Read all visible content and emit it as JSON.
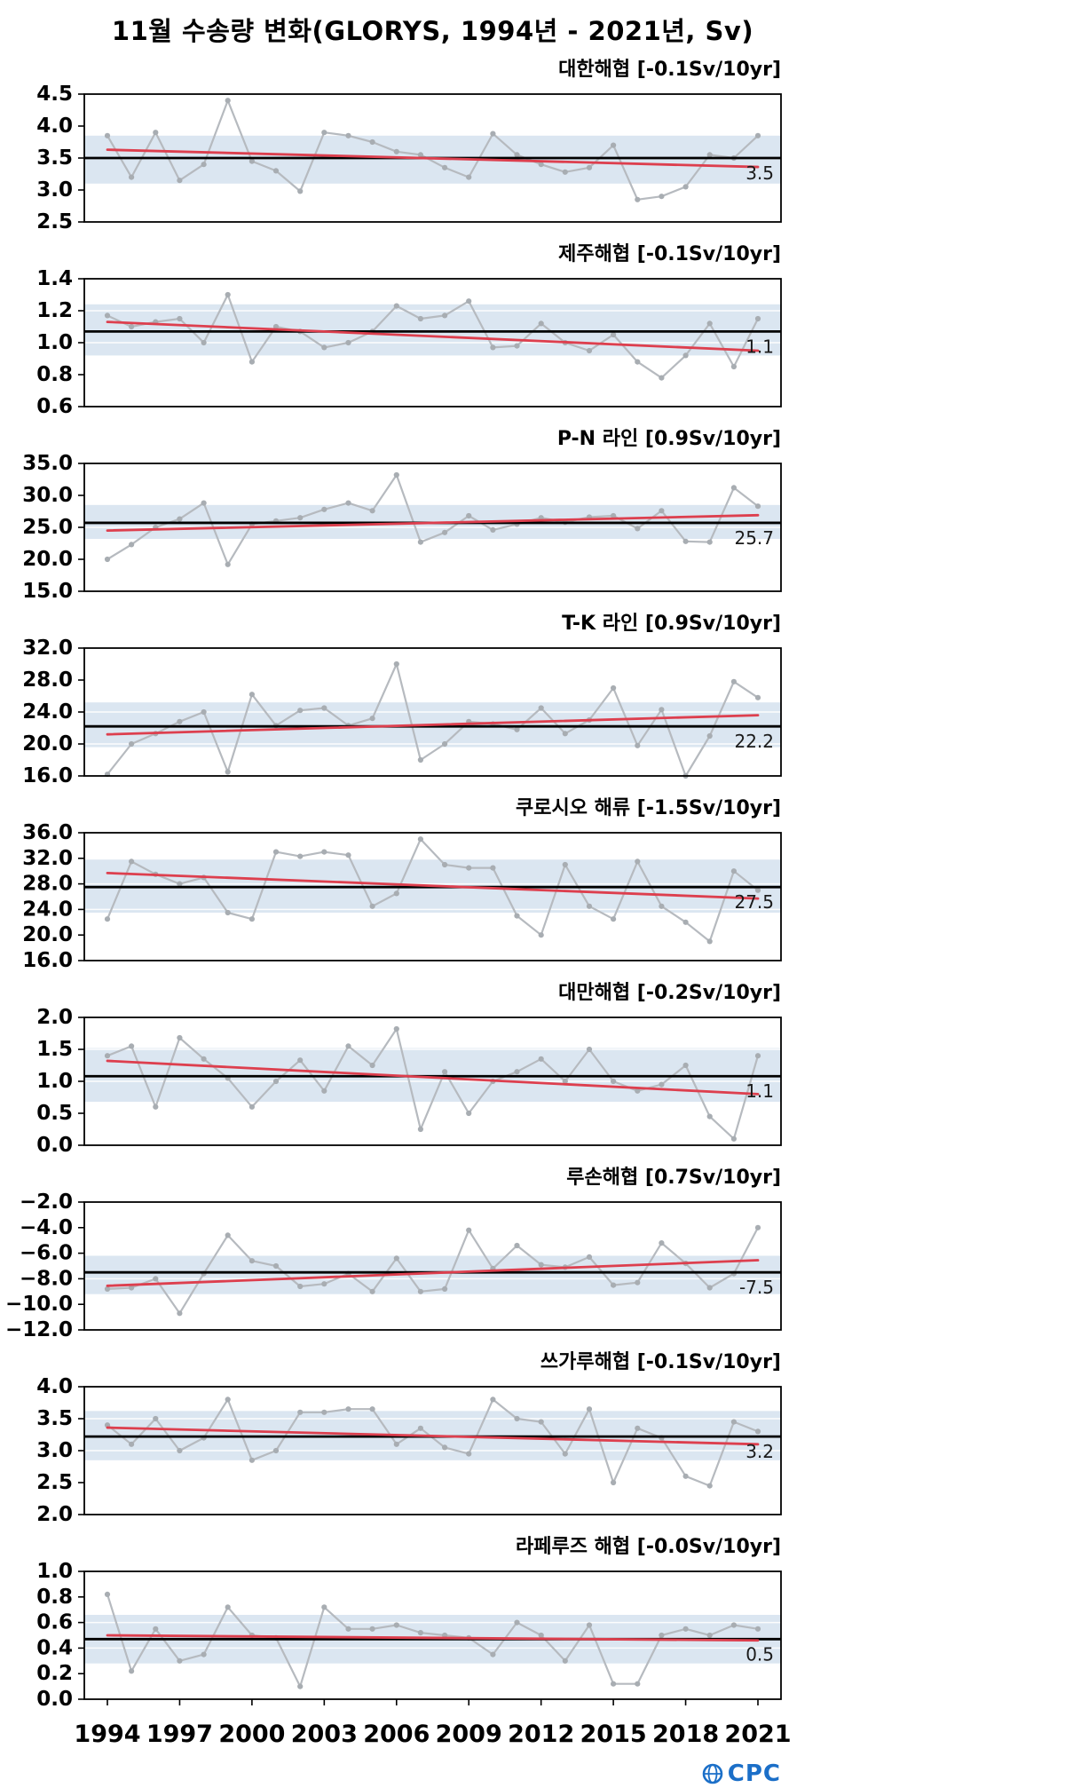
{
  "page_title": "11월 수송량 변화(GLORYS, 1994년 - 2021년, Sv)",
  "footer": {
    "logo_text": "CPC",
    "logo_color": "#1b6fc8"
  },
  "colors": {
    "series": "#b6babf",
    "marker": "#a8adb2",
    "trend": "#dd3f4e",
    "mean": "#000000",
    "band": "#dbe6f1",
    "gridline": "#ffffff",
    "border": "#000000"
  },
  "years": [
    1994,
    1995,
    1996,
    1997,
    1998,
    1999,
    2000,
    2001,
    2002,
    2003,
    2004,
    2005,
    2006,
    2007,
    2008,
    2009,
    2010,
    2011,
    2012,
    2013,
    2014,
    2015,
    2016,
    2017,
    2018,
    2019,
    2020,
    2021
  ],
  "x_axis": {
    "ticks": [
      1994,
      1997,
      2000,
      2003,
      2006,
      2009,
      2012,
      2015,
      2018,
      2021
    ]
  },
  "chart_data": [
    {
      "type": "line",
      "title": "대한해협 [-0.1Sv/10yr]",
      "trend_rate": "-0.1Sv/10yr",
      "values": [
        3.85,
        3.2,
        3.9,
        3.15,
        3.4,
        4.4,
        3.45,
        3.3,
        2.98,
        3.9,
        3.85,
        3.75,
        3.6,
        3.55,
        3.35,
        3.2,
        3.88,
        3.55,
        3.4,
        3.28,
        3.35,
        3.7,
        2.85,
        2.9,
        3.05,
        3.55,
        3.5,
        3.85
      ],
      "ylim": [
        2.5,
        4.5
      ],
      "yticks": [
        2.5,
        3.0,
        3.5,
        4.0,
        4.5
      ],
      "mean": 3.5,
      "mean_label": "3.5",
      "band": [
        3.1,
        3.85
      ],
      "trend": [
        3.63,
        3.36
      ]
    },
    {
      "type": "line",
      "title": "제주해협 [-0.1Sv/10yr]",
      "trend_rate": "-0.1Sv/10yr",
      "values": [
        1.17,
        1.1,
        1.13,
        1.15,
        1.0,
        1.3,
        0.88,
        1.1,
        1.07,
        0.97,
        1.0,
        1.07,
        1.23,
        1.15,
        1.17,
        1.26,
        0.97,
        0.98,
        1.12,
        1.0,
        0.95,
        1.05,
        0.88,
        0.78,
        0.92,
        1.12,
        0.85,
        1.15
      ],
      "ylim": [
        0.6,
        1.4
      ],
      "yticks": [
        0.6,
        0.8,
        1.0,
        1.2,
        1.4
      ],
      "mean": 1.07,
      "mean_label": "1.1",
      "band": [
        0.92,
        1.24
      ],
      "trend": [
        1.13,
        0.95
      ]
    },
    {
      "type": "line",
      "title": "P-N 라인 [0.9Sv/10yr]",
      "trend_rate": "0.9Sv/10yr",
      "values": [
        20.0,
        22.3,
        25.0,
        26.3,
        28.8,
        19.2,
        25.5,
        26.0,
        26.5,
        27.8,
        28.8,
        27.6,
        33.2,
        22.7,
        24.2,
        26.8,
        24.6,
        25.5,
        26.5,
        25.8,
        26.6,
        26.8,
        24.8,
        27.6,
        22.8,
        22.7,
        31.2,
        28.3
      ],
      "ylim": [
        15.0,
        35.0
      ],
      "yticks": [
        15.0,
        20.0,
        25.0,
        30.0,
        35.0
      ],
      "mean": 25.7,
      "mean_label": "25.7",
      "band": [
        23.2,
        28.5
      ],
      "trend": [
        24.5,
        26.9
      ]
    },
    {
      "type": "line",
      "title": "T-K 라인 [0.9Sv/10yr]",
      "trend_rate": "0.9Sv/10yr",
      "values": [
        16.2,
        20.0,
        21.3,
        22.8,
        24.0,
        16.5,
        26.2,
        22.3,
        24.2,
        24.5,
        22.3,
        23.2,
        30.0,
        18.0,
        20.0,
        22.8,
        22.5,
        21.8,
        24.5,
        21.3,
        23.0,
        27.0,
        19.8,
        24.3,
        16.0,
        21.0,
        27.8,
        25.8
      ],
      "ylim": [
        16.0,
        32.0
      ],
      "yticks": [
        16.0,
        20.0,
        24.0,
        28.0,
        32.0
      ],
      "mean": 22.2,
      "mean_label": "22.2",
      "band": [
        19.6,
        25.2
      ],
      "trend": [
        21.2,
        23.6
      ]
    },
    {
      "type": "line",
      "title": "쿠로시오 해류 [-1.5Sv/10yr]",
      "trend_rate": "-1.5Sv/10yr",
      "values": [
        22.5,
        31.5,
        29.5,
        28.0,
        29.0,
        23.5,
        22.5,
        33.0,
        32.3,
        33.0,
        32.5,
        24.5,
        26.5,
        35.0,
        31.0,
        30.5,
        30.5,
        23.0,
        20.0,
        31.0,
        24.5,
        22.5,
        31.5,
        24.5,
        22.0,
        19.0,
        30.0,
        27.0
      ],
      "ylim": [
        16.0,
        36.0
      ],
      "yticks": [
        16.0,
        20.0,
        24.0,
        28.0,
        32.0,
        36.0
      ],
      "mean": 27.5,
      "mean_label": "27.5",
      "band": [
        23.5,
        31.8
      ],
      "trend": [
        29.7,
        25.7
      ]
    },
    {
      "type": "line",
      "title": "대만해협 [-0.2Sv/10yr]",
      "trend_rate": "-0.2Sv/10yr",
      "values": [
        1.4,
        1.55,
        0.6,
        1.68,
        1.35,
        1.05,
        0.6,
        1.0,
        1.33,
        0.85,
        1.55,
        1.25,
        1.82,
        0.25,
        1.15,
        0.5,
        1.0,
        1.15,
        1.35,
        1.0,
        1.5,
        1.0,
        0.85,
        0.95,
        1.25,
        0.45,
        0.1,
        1.4
      ],
      "ylim": [
        0.0,
        2.0
      ],
      "yticks": [
        0.0,
        0.5,
        1.0,
        1.5,
        2.0
      ],
      "mean": 1.08,
      "mean_label": "1.1",
      "band": [
        0.68,
        1.52
      ],
      "trend": [
        1.32,
        0.8
      ]
    },
    {
      "type": "line",
      "title": "루손해협 [0.7Sv/10yr]",
      "trend_rate": "0.7Sv/10yr",
      "values": [
        -8.8,
        -8.7,
        -8.0,
        -10.7,
        -7.6,
        -4.6,
        -6.6,
        -7.0,
        -8.6,
        -8.4,
        -7.6,
        -9.0,
        -6.4,
        -9.0,
        -8.8,
        -4.2,
        -7.2,
        -5.4,
        -6.9,
        -7.1,
        -6.3,
        -8.5,
        -8.3,
        -5.2,
        -6.8,
        -8.7,
        -7.6,
        -4.0
      ],
      "ylim": [
        -12.0,
        -2.0
      ],
      "yticks": [
        -12.0,
        -10.0,
        -8.0,
        -6.0,
        -4.0,
        -2.0
      ],
      "mean": -7.5,
      "mean_label": "-7.5",
      "band": [
        -9.2,
        -6.2
      ],
      "trend": [
        -8.55,
        -6.55
      ]
    },
    {
      "type": "line",
      "title": "쓰가루해협 [-0.1Sv/10yr]",
      "trend_rate": "-0.1Sv/10yr",
      "values": [
        3.4,
        3.1,
        3.5,
        3.0,
        3.2,
        3.8,
        2.85,
        3.0,
        3.6,
        3.6,
        3.65,
        3.65,
        3.1,
        3.35,
        3.05,
        2.95,
        3.8,
        3.5,
        3.45,
        2.95,
        3.65,
        2.5,
        3.35,
        3.2,
        2.6,
        2.45,
        3.45,
        3.3
      ],
      "ylim": [
        2.0,
        4.0
      ],
      "yticks": [
        2.0,
        2.5,
        3.0,
        3.5,
        4.0
      ],
      "mean": 3.22,
      "mean_label": "3.2",
      "band": [
        2.85,
        3.62
      ],
      "trend": [
        3.36,
        3.1
      ]
    },
    {
      "type": "line",
      "title": "라페루즈 해협 [-0.0Sv/10yr]",
      "trend_rate": "-0.0Sv/10yr",
      "values": [
        0.82,
        0.22,
        0.55,
        0.3,
        0.35,
        0.72,
        0.5,
        0.48,
        0.1,
        0.72,
        0.55,
        0.55,
        0.58,
        0.52,
        0.5,
        0.48,
        0.35,
        0.6,
        0.5,
        0.3,
        0.58,
        0.12,
        0.12,
        0.5,
        0.55,
        0.5,
        0.58,
        0.55
      ],
      "ylim": [
        0.0,
        1.0
      ],
      "yticks": [
        0.0,
        0.2,
        0.4,
        0.6,
        0.8,
        1.0
      ],
      "mean": 0.47,
      "mean_label": "0.5",
      "band": [
        0.28,
        0.66
      ],
      "trend": [
        0.5,
        0.46
      ]
    }
  ]
}
